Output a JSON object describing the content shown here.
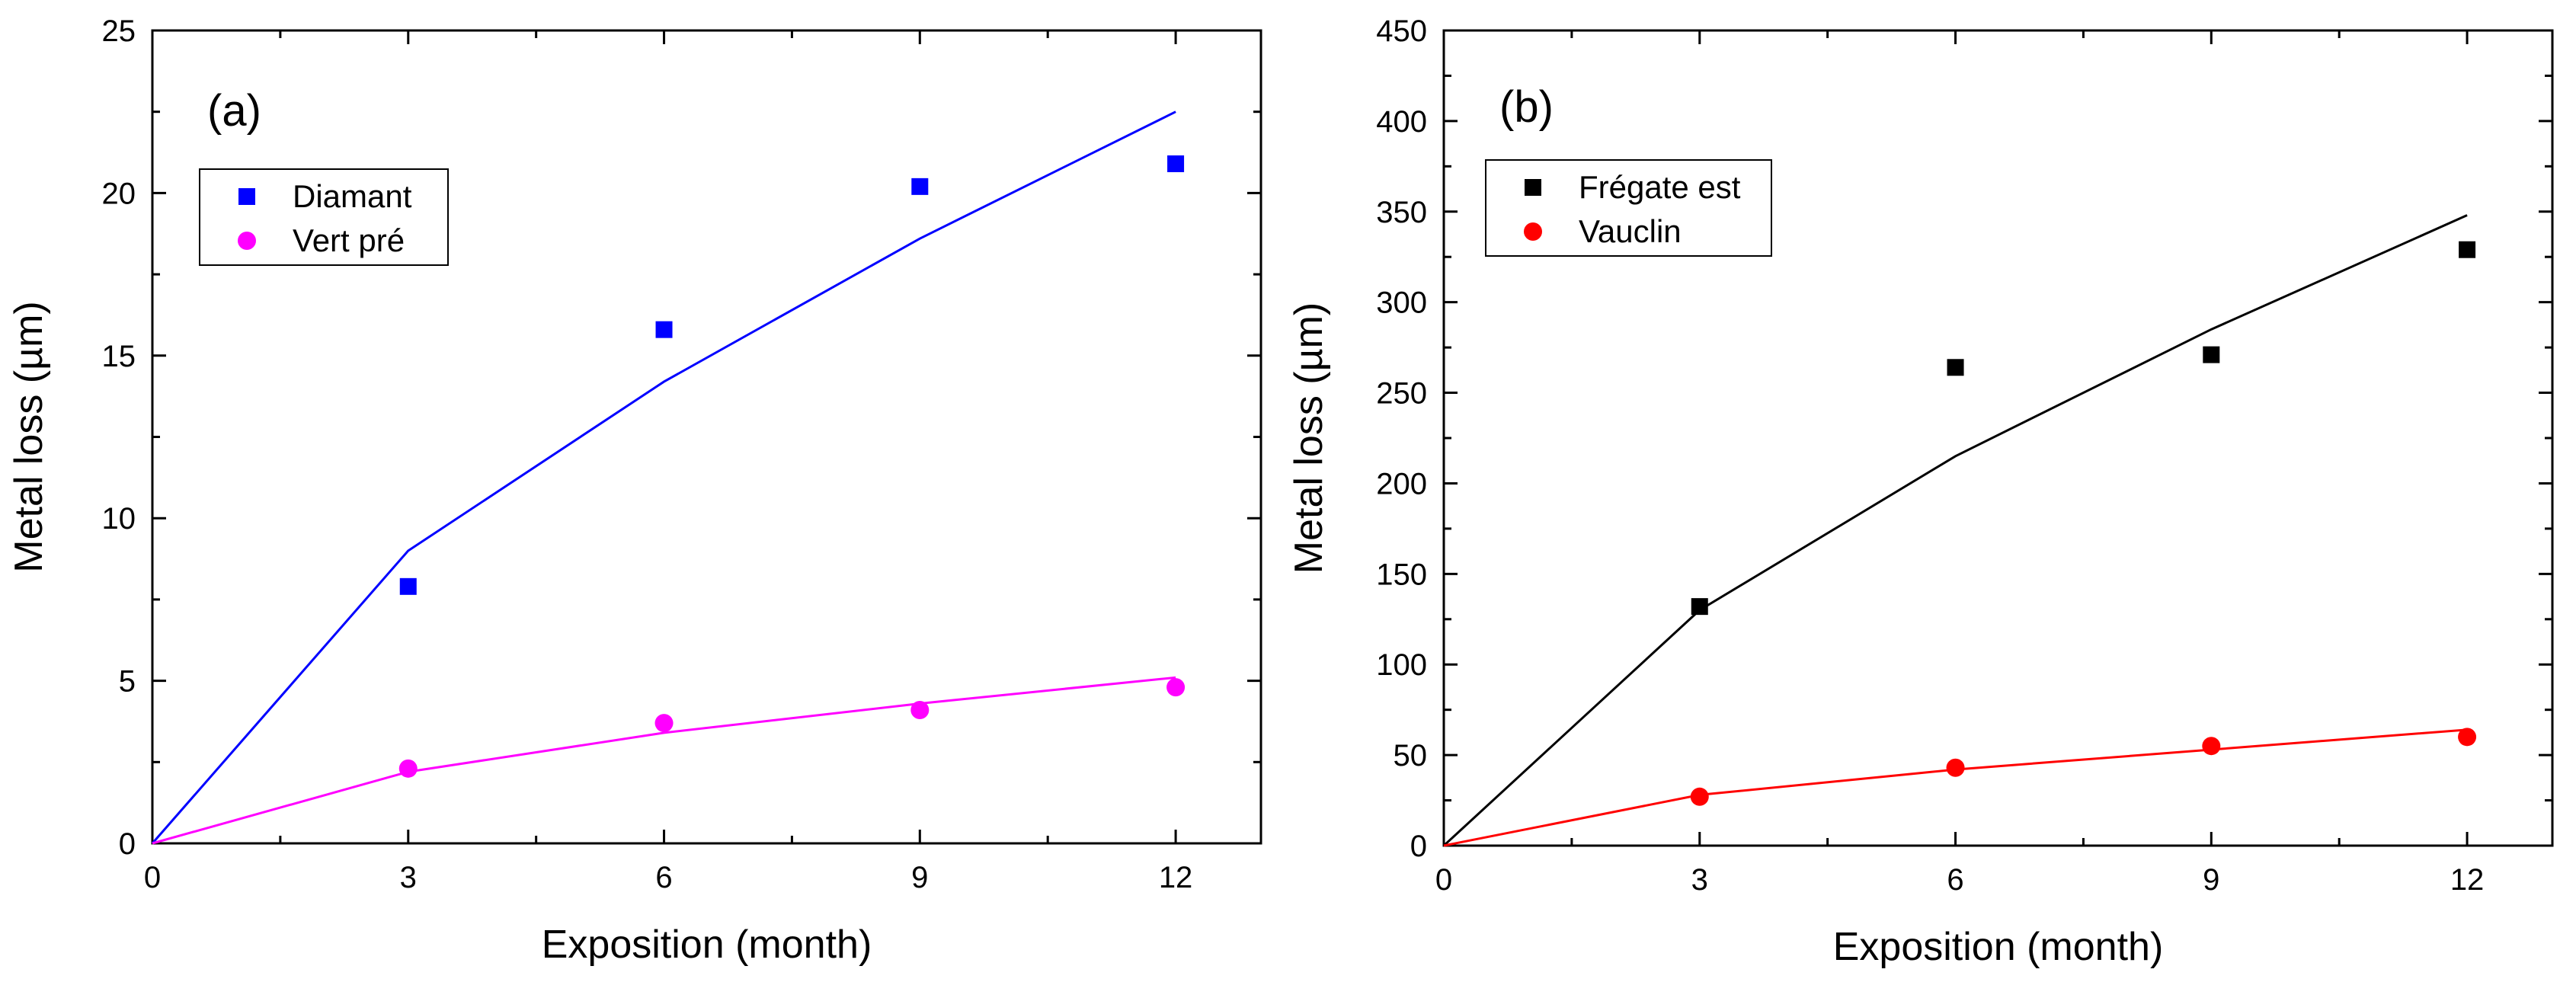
{
  "chart_data": [
    {
      "type": "scatter",
      "panel_label": "(a)",
      "xlabel": "Exposition (month)",
      "ylabel": "Metal loss (µm)",
      "xlim": [
        0,
        13
      ],
      "ylim": [
        0,
        25
      ],
      "xticks": [
        0,
        3,
        6,
        9,
        12
      ],
      "yticks": [
        0,
        5,
        10,
        15,
        20,
        25
      ],
      "legend_position": "upper-left",
      "series": [
        {
          "name": "Diamant",
          "color": "#0000ff",
          "marker": "square",
          "x": [
            3,
            6,
            9,
            12
          ],
          "y": [
            7.9,
            15.8,
            20.2,
            20.9
          ],
          "fit": {
            "x": [
              0,
              3,
              6,
              9,
              12
            ],
            "y": [
              0,
              9.0,
              14.2,
              18.6,
              22.5
            ]
          }
        },
        {
          "name": "Vert pré",
          "color": "#ff00ff",
          "marker": "circle",
          "x": [
            3,
            6,
            9,
            12
          ],
          "y": [
            2.3,
            3.7,
            4.1,
            4.8
          ],
          "fit": {
            "x": [
              0,
              3,
              6,
              9,
              12
            ],
            "y": [
              0,
              2.2,
              3.4,
              4.3,
              5.1
            ]
          }
        }
      ]
    },
    {
      "type": "scatter",
      "panel_label": "(b)",
      "xlabel": "Exposition (month)",
      "ylabel": "Metal loss (µm)",
      "xlim": [
        0,
        13
      ],
      "ylim": [
        0,
        450
      ],
      "xticks": [
        0,
        3,
        6,
        9,
        12
      ],
      "yticks": [
        0,
        50,
        100,
        150,
        200,
        250,
        300,
        350,
        400,
        450
      ],
      "legend_position": "upper-left",
      "series": [
        {
          "name": "Frégate est",
          "color": "#000000",
          "marker": "square",
          "x": [
            3,
            6,
            9,
            12
          ],
          "y": [
            132,
            264,
            271,
            329
          ],
          "fit": {
            "x": [
              0,
              3,
              6,
              9,
              12
            ],
            "y": [
              0,
              130,
              215,
              285,
              348
            ]
          }
        },
        {
          "name": "Vauclin",
          "color": "#ff0000",
          "marker": "circle",
          "x": [
            3,
            6,
            9,
            12
          ],
          "y": [
            27,
            43,
            55,
            60
          ],
          "fit": {
            "x": [
              0,
              3,
              6,
              9,
              12
            ],
            "y": [
              0,
              28,
              42,
              53,
              64
            ]
          }
        }
      ]
    }
  ]
}
